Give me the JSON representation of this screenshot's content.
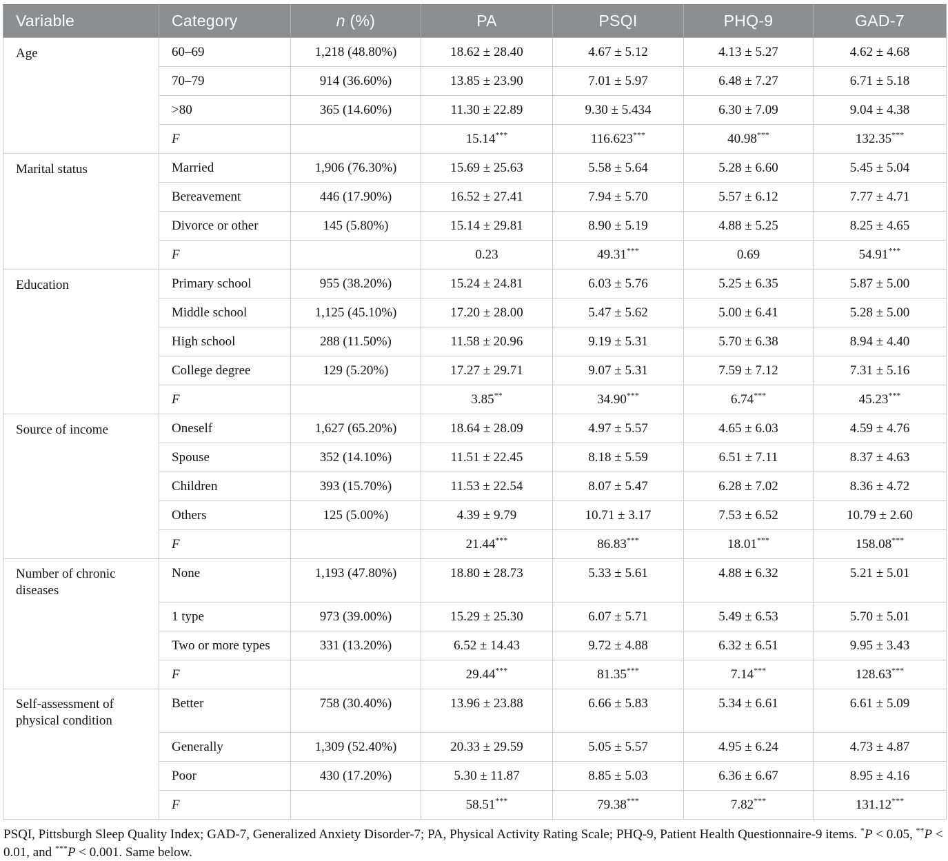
{
  "colors": {
    "header_bg": "#8a8e91",
    "header_text": "#fdfdfd",
    "border": "#c7cccf",
    "header_sep": "#a9adb0",
    "text": "#141414"
  },
  "table": {
    "columns": [
      "Variable",
      "Category",
      "n (%)",
      "PA",
      "PSQI",
      "PHQ-9",
      "GAD-7"
    ],
    "groups": [
      {
        "variable": "Age",
        "rows": [
          [
            "60–69",
            "1,218 (48.80%)",
            "18.62 ± 28.40",
            "4.67 ± 5.12",
            "4.13 ± 5.27",
            "4.62 ± 4.68"
          ],
          [
            "70–79",
            "914 (36.60%)",
            "13.85 ± 23.90",
            "7.01 ± 5.97",
            "6.48 ± 7.27",
            "6.71 ± 5.18"
          ],
          [
            ">80",
            "365 (14.60%)",
            "11.30 ± 22.89",
            "9.30 ± 5.434",
            "6.30 ± 7.09",
            "9.04 ± 4.38"
          ],
          [
            "F",
            "",
            "15.14***",
            "116.623***",
            "40.98***",
            "132.35***"
          ]
        ]
      },
      {
        "variable": "Marital status",
        "rows": [
          [
            "Married",
            "1,906 (76.30%)",
            "15.69 ± 25.63",
            "5.58 ± 5.64",
            "5.28 ± 6.60",
            "5.45 ± 5.04"
          ],
          [
            "Bereavement",
            "446 (17.90%)",
            "16.52 ± 27.41",
            "7.94 ± 5.70",
            "5.57 ± 6.12",
            "7.77 ± 4.71"
          ],
          [
            "Divorce or other",
            "145 (5.80%)",
            "15.14 ± 29.81",
            "8.90 ± 5.19",
            "4.88 ± 5.25",
            "8.25 ± 4.65"
          ],
          [
            "F",
            "",
            "0.23",
            "49.31***",
            "0.69",
            "54.91***"
          ]
        ]
      },
      {
        "variable": "Education",
        "rows": [
          [
            "Primary school",
            "955 (38.20%)",
            "15.24 ± 24.81",
            "6.03 ± 5.76",
            "5.25 ± 6.35",
            "5.87 ± 5.00"
          ],
          [
            "Middle school",
            "1,125 (45.10%)",
            "17.20 ± 28.00",
            "5.47 ± 5.62",
            "5.00 ± 6.41",
            "5.28 ± 5.00"
          ],
          [
            "High school",
            "288 (11.50%)",
            "11.58 ± 20.96",
            "9.19 ± 5.31",
            "5.70 ± 6.38",
            "8.94 ± 4.40"
          ],
          [
            "College degree",
            "129 (5.20%)",
            "17.27 ± 29.71",
            "9.07 ± 5.31",
            "7.59 ± 7.12",
            "7.31 ± 5.16"
          ],
          [
            "F",
            "",
            "3.85**",
            "34.90***",
            "6.74***",
            "45.23***"
          ]
        ]
      },
      {
        "variable": "Source of income",
        "rows": [
          [
            "Oneself",
            "1,627 (65.20%)",
            "18.64 ± 28.09",
            "4.97 ± 5.57",
            "4.65 ± 6.03",
            "4.59 ± 4.76"
          ],
          [
            "Spouse",
            "352 (14.10%)",
            "11.51 ± 22.45",
            "8.18 ± 5.59",
            "6.51 ± 7.11",
            "8.37 ± 4.63"
          ],
          [
            "Children",
            "393 (15.70%)",
            "11.53 ± 22.54",
            "8.07 ± 5.47",
            "6.28 ± 7.02",
            "8.36 ± 4.72"
          ],
          [
            "Others",
            "125 (5.00%)",
            "4.39 ± 9.79",
            "10.71 ± 3.17",
            "7.53 ± 6.52",
            "10.79 ± 2.60"
          ],
          [
            "F",
            "",
            "21.44***",
            "86.83***",
            "18.01***",
            "158.08***"
          ]
        ]
      },
      {
        "variable": "Number of chronic diseases",
        "rows": [
          [
            "None",
            "1,193 (47.80%)",
            "18.80 ± 28.73",
            "5.33 ± 5.61",
            "4.88 ± 6.32",
            "5.21 ± 5.01"
          ],
          [
            "1 type",
            "973 (39.00%)",
            "15.29 ± 25.30",
            "6.07 ± 5.71",
            "5.49 ± 6.53",
            "5.70 ± 5.01"
          ],
          [
            "Two or more types",
            "331 (13.20%)",
            "6.52 ± 14.43",
            "9.72 ± 4.88",
            "6.32 ± 6.51",
            "9.95 ± 3.43"
          ],
          [
            "F",
            "",
            "29.44***",
            "81.35***",
            "7.14***",
            "128.63***"
          ]
        ]
      },
      {
        "variable": "Self-assessment of physical condition",
        "rows": [
          [
            "Better",
            "758 (30.40%)",
            "13.96 ± 23.88",
            "6.66 ± 5.83",
            "5.34 ± 6.61",
            "6.61 ± 5.09"
          ],
          [
            "Generally",
            "1,309 (52.40%)",
            "20.33 ± 29.59",
            "5.05 ± 5.57",
            "4.95 ± 6.24",
            "4.73 ± 4.87"
          ],
          [
            "Poor",
            "430 (17.20%)",
            "5.30 ± 11.87",
            "8.85 ± 5.03",
            "6.36 ± 6.67",
            "8.95 ± 4.16"
          ],
          [
            "F",
            "",
            "58.51***",
            "79.38***",
            "7.82***",
            "131.12***"
          ]
        ]
      }
    ]
  },
  "footnote": {
    "segments": [
      {
        "t": "PSQI, Pittsburgh Sleep Quality Index; GAD-7, Generalized Anxiety Disorder-7; PA, Physical Activity Rating Scale; PHQ-9, Patient Health Questionnaire-9 items. "
      },
      {
        "sup": "*"
      },
      {
        "i": "P"
      },
      {
        "t": " < 0.05, "
      },
      {
        "sup": "**"
      },
      {
        "i": "P"
      },
      {
        "t": " < 0.01, and "
      },
      {
        "sup": "***"
      },
      {
        "i": "P"
      },
      {
        "t": " < 0.001. Same below."
      }
    ]
  }
}
